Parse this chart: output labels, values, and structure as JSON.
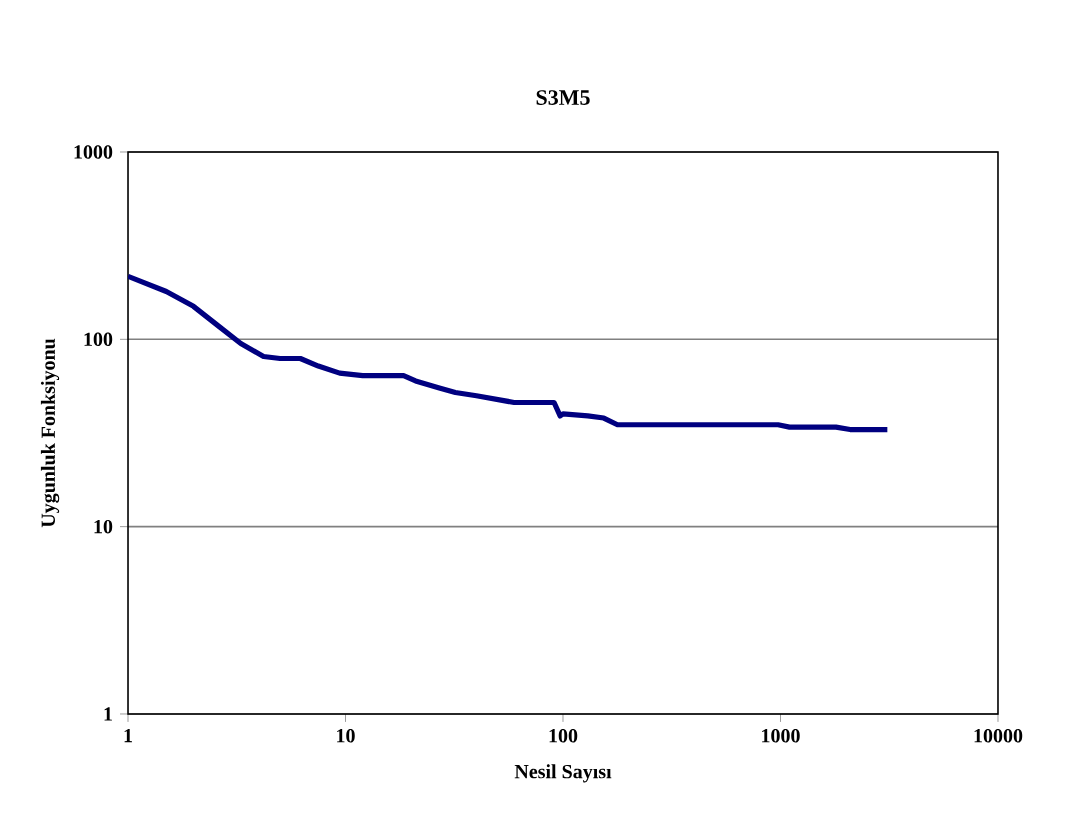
{
  "chart_data": {
    "type": "line",
    "title": "S3M5",
    "xlabel": "Nesil Sayısı",
    "ylabel": "Uygunluk Fonksiyonu",
    "log": "xy",
    "xlim": [
      1,
      10000
    ],
    "ylim": [
      1,
      1000
    ],
    "xticks": [
      1,
      10,
      100,
      1000,
      10000
    ],
    "yticks": [
      1,
      10,
      100,
      1000
    ],
    "grid": "y",
    "marker": "none",
    "line_style": "solid",
    "series": [
      {
        "color": "#000080",
        "x": [
          1,
          1.5,
          2,
          2.6,
          3.3,
          4.2,
          5,
          6.2,
          7.5,
          9.4,
          12,
          18.5,
          21,
          27,
          32,
          40,
          59.6,
          91,
          97,
          100,
          130,
          154,
          178,
          400,
          975,
          1100,
          1800,
          2090,
          3100
        ],
        "values": [
          217,
          180,
          150,
          118,
          95,
          81,
          79,
          79,
          72,
          66,
          64,
          64,
          60,
          55,
          52,
          50,
          46,
          46,
          39,
          40,
          39,
          38,
          35,
          35,
          35,
          34,
          34,
          33,
          33
        ]
      }
    ]
  }
}
